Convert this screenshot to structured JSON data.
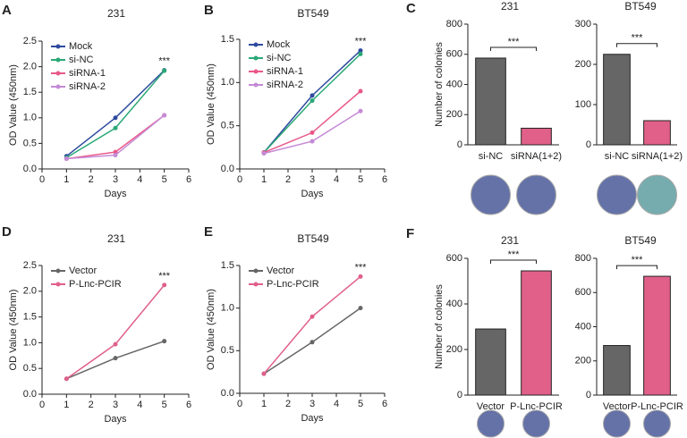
{
  "chart_data": [
    {
      "type": "line",
      "label": "A",
      "title": "231",
      "x_label": "Days",
      "y_label": "OD Value (450nm)",
      "x": [
        1,
        3,
        5
      ],
      "xlim": [
        0,
        6
      ],
      "xticks": [
        0,
        1,
        2,
        3,
        4,
        5,
        6
      ],
      "ylim": [
        0,
        2.5
      ],
      "yticks": [
        {
          "value": 0,
          "label": "0.0"
        },
        0.5,
        {
          "value": 1,
          "label": "1.0"
        },
        1.5,
        {
          "value": 2,
          "label": "2.0"
        },
        2.5
      ],
      "legend": "upper left",
      "annotation": "***",
      "series": [
        {
          "name": "Mock",
          "color": "#2e4a9e",
          "values": [
            0.25,
            1.0,
            1.93
          ]
        },
        {
          "name": "si-NC",
          "color": "#2aa876",
          "values": [
            0.22,
            0.8,
            1.92
          ]
        },
        {
          "name": "siRNA-1",
          "color": "#e8588a",
          "values": [
            0.2,
            0.33,
            1.05
          ]
        },
        {
          "name": "siRNA-2",
          "color": "#c58ad6",
          "values": [
            0.2,
            0.27,
            1.05
          ]
        }
      ]
    },
    {
      "type": "line",
      "label": "B",
      "title": "BT549",
      "x_label": "Days",
      "y_label": "OD Value (450nm)",
      "x": [
        1,
        3,
        5
      ],
      "xlim": [
        0,
        6
      ],
      "xticks": [
        0,
        1,
        2,
        3,
        4,
        5,
        6
      ],
      "ylim": [
        0,
        1.5
      ],
      "yticks": [
        {
          "value": 0,
          "label": "0.0"
        },
        0.5,
        {
          "value": 1,
          "label": "1.0"
        },
        1.5
      ],
      "legend": "upper left",
      "annotation": "***",
      "series": [
        {
          "name": "Mock",
          "color": "#2e4a9e",
          "values": [
            0.19,
            0.85,
            1.37
          ]
        },
        {
          "name": "si-NC",
          "color": "#2aa876",
          "values": [
            0.19,
            0.79,
            1.33
          ]
        },
        {
          "name": "siRNA-1",
          "color": "#e8588a",
          "values": [
            0.19,
            0.42,
            0.9
          ]
        },
        {
          "name": "siRNA-2",
          "color": "#c58ad6",
          "values": [
            0.18,
            0.32,
            0.67
          ]
        }
      ]
    },
    {
      "type": "bar",
      "label": "C",
      "title": "231",
      "y_label": "Number of colonies",
      "categories": [
        "si-NC",
        "siRNA(1+2)"
      ],
      "values": [
        575,
        110
      ],
      "colors": [
        "#666666",
        "#e0608a"
      ],
      "ylim": [
        0,
        800
      ],
      "yticks": [
        0,
        200,
        400,
        600,
        800
      ],
      "annotation": "***"
    },
    {
      "type": "bar",
      "title": "BT549",
      "categories": [
        "si-NC",
        "siRNA(1+2)"
      ],
      "values": [
        225,
        60
      ],
      "colors": [
        "#666666",
        "#e0608a"
      ],
      "ylim": [
        0,
        300
      ],
      "yticks": [
        0,
        100,
        200,
        300
      ],
      "annotation": "***"
    },
    {
      "type": "line",
      "label": "D",
      "title": "231",
      "x_label": "Days",
      "y_label": "OD Value (450nm)",
      "x": [
        1,
        3,
        5
      ],
      "xlim": [
        0,
        6
      ],
      "xticks": [
        0,
        1,
        2,
        3,
        4,
        5,
        6
      ],
      "ylim": [
        0,
        2.5
      ],
      "yticks": [
        {
          "value": 0,
          "label": "0.0"
        },
        0.5,
        {
          "value": 1,
          "label": "1.0"
        },
        1.5,
        {
          "value": 2,
          "label": "2.0"
        },
        2.5
      ],
      "legend": "upper left",
      "annotation": "***",
      "series": [
        {
          "name": "Vector",
          "color": "#666666",
          "values": [
            0.3,
            0.7,
            1.03
          ]
        },
        {
          "name": "P-Lnc-PCIR",
          "color": "#e0608a",
          "values": [
            0.3,
            0.97,
            2.12
          ]
        }
      ]
    },
    {
      "type": "line",
      "label": "E",
      "title": "BT549",
      "x_label": "Days",
      "y_label": "OD Value (450nm)",
      "x": [
        1,
        3,
        5
      ],
      "xlim": [
        0,
        6
      ],
      "xticks": [
        0,
        1,
        2,
        3,
        4,
        5,
        6
      ],
      "ylim": [
        0,
        1.5
      ],
      "yticks": [
        {
          "value": 0,
          "label": "0.0"
        },
        0.5,
        {
          "value": 1,
          "label": "1.0"
        },
        1.5
      ],
      "legend": "upper left",
      "annotation": "***",
      "series": [
        {
          "name": "Vector",
          "color": "#666666",
          "values": [
            0.23,
            0.6,
            1.0
          ]
        },
        {
          "name": "P-Lnc-PCIR",
          "color": "#e0608a",
          "values": [
            0.23,
            0.9,
            1.37
          ]
        }
      ]
    },
    {
      "type": "bar",
      "label": "F",
      "title": "231",
      "y_label": "Number of colonies",
      "categories": [
        "Vector",
        "P-Lnc-PCIR"
      ],
      "values": [
        290,
        545
      ],
      "colors": [
        "#666666",
        "#e0608a"
      ],
      "ylim": [
        0,
        600
      ],
      "yticks": [
        0,
        200,
        400,
        600
      ],
      "annotation": "***"
    },
    {
      "type": "bar",
      "title": "BT549",
      "categories": [
        "Vector",
        "P-Lnc-PCIR"
      ],
      "values": [
        290,
        695
      ],
      "colors": [
        "#666666",
        "#e0608a"
      ],
      "ylim": [
        0,
        800
      ],
      "yticks": [
        0,
        200,
        400,
        600,
        800
      ],
      "annotation": "***"
    }
  ]
}
